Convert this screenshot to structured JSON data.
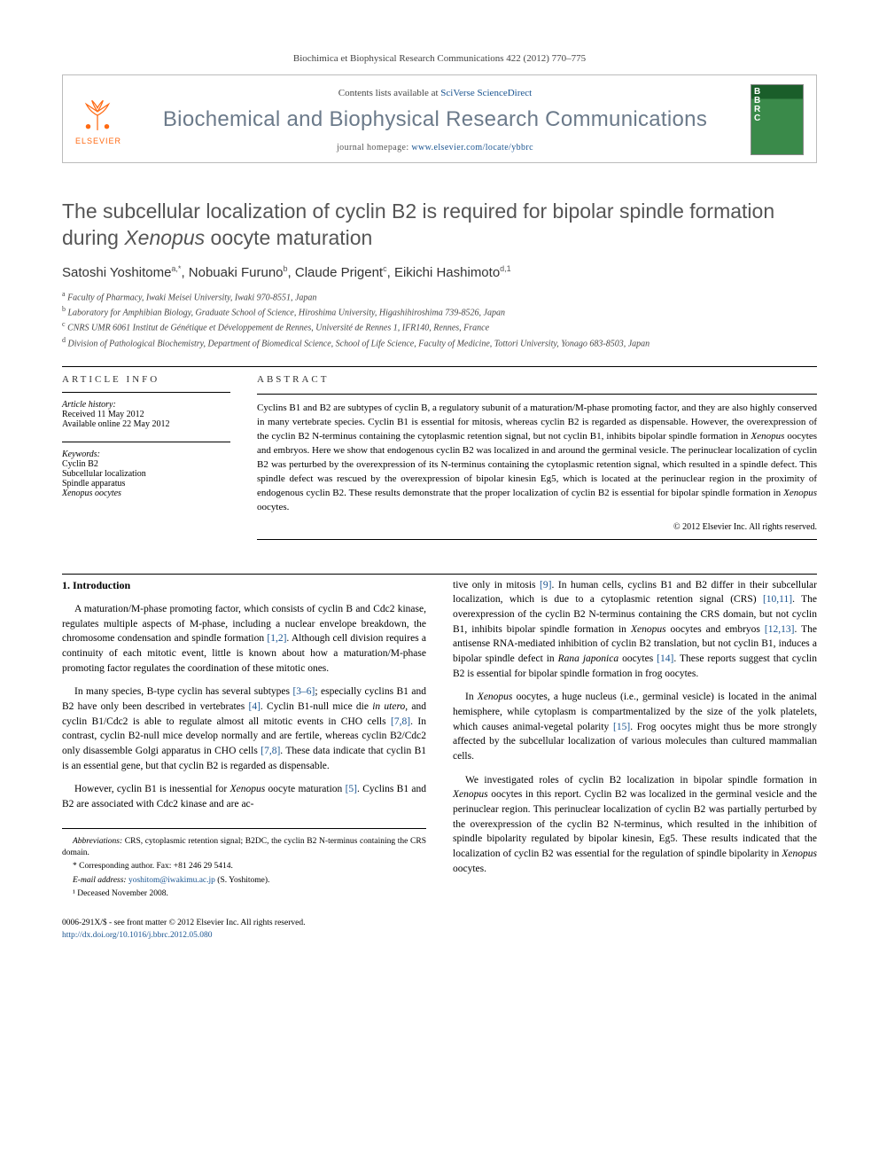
{
  "citation": "Biochimica et Biophysical Research Communications 422 (2012) 770–775",
  "header": {
    "contents_prefix": "Contents lists available at ",
    "contents_link": "SciVerse ScienceDirect",
    "journal_title": "Biochemical and Biophysical Research Communications",
    "homepage_prefix": "journal homepage: ",
    "homepage_url": "www.elsevier.com/locate/ybbrc",
    "publisher": "ELSEVIER",
    "cover_letters": [
      "B",
      "B",
      "R",
      "C"
    ]
  },
  "article": {
    "title_pre": "The subcellular localization of cyclin B2 is required for bipolar spindle formation during ",
    "title_em": "Xenopus",
    "title_post": " oocyte maturation"
  },
  "authors": [
    {
      "name": "Satoshi Yoshitome",
      "marks": "a,*"
    },
    {
      "name": "Nobuaki Furuno",
      "marks": "b"
    },
    {
      "name": "Claude Prigent",
      "marks": "c"
    },
    {
      "name": "Eikichi Hashimoto",
      "marks": "d,1"
    }
  ],
  "affiliations": [
    {
      "mark": "a",
      "text": "Faculty of Pharmacy, Iwaki Meisei University, Iwaki 970-8551, Japan"
    },
    {
      "mark": "b",
      "text": "Laboratory for Amphibian Biology, Graduate School of Science, Hiroshima University, Higashihiroshima 739-8526, Japan"
    },
    {
      "mark": "c",
      "text": "CNRS UMR 6061 Institut de Génétique et Développement de Rennes, Université de Rennes 1, IFR140, Rennes, France"
    },
    {
      "mark": "d",
      "text": "Division of Pathological Biochemistry, Department of Biomedical Science, School of Life Science, Faculty of Medicine, Tottori University, Yonago 683-8503, Japan"
    }
  ],
  "info": {
    "label": "ARTICLE INFO",
    "history_label": "Article history:",
    "received": "Received 11 May 2012",
    "online": "Available online 22 May 2012",
    "keywords_label": "Keywords:",
    "keywords": [
      "Cyclin B2",
      "Subcellular localization",
      "Spindle apparatus",
      "Xenopus oocytes"
    ]
  },
  "abstract": {
    "label": "ABSTRACT",
    "text": "Cyclins B1 and B2 are subtypes of cyclin B, a regulatory subunit of a maturation/M-phase promoting factor, and they are also highly conserved in many vertebrate species. Cyclin B1 is essential for mitosis, whereas cyclin B2 is regarded as dispensable. However, the overexpression of the cyclin B2 N-terminus containing the cytoplasmic retention signal, but not cyclin B1, inhibits bipolar spindle formation in Xenopus oocytes and embryos. Here we show that endogenous cyclin B2 was localized in and around the germinal vesicle. The perinuclear localization of cyclin B2 was perturbed by the overexpression of its N-terminus containing the cytoplasmic retention signal, which resulted in a spindle defect. This spindle defect was rescued by the overexpression of bipolar kinesin Eg5, which is located at the perinuclear region in the proximity of endogenous cyclin B2. These results demonstrate that the proper localization of cyclin B2 is essential for bipolar spindle formation in Xenopus oocytes.",
    "copyright": "© 2012 Elsevier Inc. All rights reserved."
  },
  "body": {
    "section_heading": "1. Introduction",
    "left_paras": [
      "A maturation/M-phase promoting factor, which consists of cyclin B and Cdc2 kinase, regulates multiple aspects of M-phase, including a nuclear envelope breakdown, the chromosome condensation and spindle formation [1,2]. Although cell division requires a continuity of each mitotic event, little is known about how a maturation/M-phase promoting factor regulates the coordination of these mitotic ones.",
      "In many species, B-type cyclin has several subtypes [3–6]; especially cyclins B1 and B2 have only been described in vertebrates [4]. Cyclin B1-null mice die in utero, and cyclin B1/Cdc2 is able to regulate almost all mitotic events in CHO cells [7,8]. In contrast, cyclin B2-null mice develop normally and are fertile, whereas cyclin B2/Cdc2 only disassemble Golgi apparatus in CHO cells [7,8]. These data indicate that cyclin B1 is an essential gene, but that cyclin B2 is regarded as dispensable.",
      "However, cyclin B1 is inessential for Xenopus oocyte maturation [5]. Cyclins B1 and B2 are associated with Cdc2 kinase and are ac-"
    ],
    "right_paras": [
      "tive only in mitosis [9]. In human cells, cyclins B1 and B2 differ in their subcellular localization, which is due to a cytoplasmic retention signal (CRS) [10,11]. The overexpression of the cyclin B2 N-terminus containing the CRS domain, but not cyclin B1, inhibits bipolar spindle formation in Xenopus oocytes and embryos [12,13]. The antisense RNA-mediated inhibition of cyclin B2 translation, but not cyclin B1, induces a bipolar spindle defect in Rana japonica oocytes [14]. These reports suggest that cyclin B2 is essential for bipolar spindle formation in frog oocytes.",
      "In Xenopus oocytes, a huge nucleus (i.e., germinal vesicle) is located in the animal hemisphere, while cytoplasm is compartmentalized by the size of the yolk platelets, which causes animal-vegetal polarity [15]. Frog oocytes might thus be more strongly affected by the subcellular localization of various molecules than cultured mammalian cells.",
      "We investigated roles of cyclin B2 localization in bipolar spindle formation in Xenopus oocytes in this report. Cyclin B2 was localized in the germinal vesicle and the perinuclear region. This perinuclear localization of cyclin B2 was partially perturbed by the overexpression of the cyclin B2 N-terminus, which resulted in the inhibition of spindle bipolarity regulated by bipolar kinesin, Eg5. These results indicated that the localization of cyclin B2 was essential for the regulation of spindle bipolarity in Xenopus oocytes."
    ]
  },
  "footnotes": {
    "abbrev_label": "Abbreviations:",
    "abbrev_text": " CRS, cytoplasmic retention signal; B2DC, the cyclin B2 N-terminus containing the CRS domain.",
    "corresponding": "* Corresponding author. Fax: +81 246 29 5414.",
    "email_label": "E-mail address: ",
    "email": "yoshitom@iwakimu.ac.jp",
    "email_suffix": " (S. Yoshitome).",
    "deceased": "¹ Deceased November 2008."
  },
  "footer": {
    "issn": "0006-291X/$ - see front matter © 2012 Elsevier Inc. All rights reserved.",
    "doi": "http://dx.doi.org/10.1016/j.bbrc.2012.05.080"
  },
  "colors": {
    "link": "#1a5490",
    "elsevier_orange": "#ff6a13",
    "journal_gray": "#6b7a8a"
  }
}
